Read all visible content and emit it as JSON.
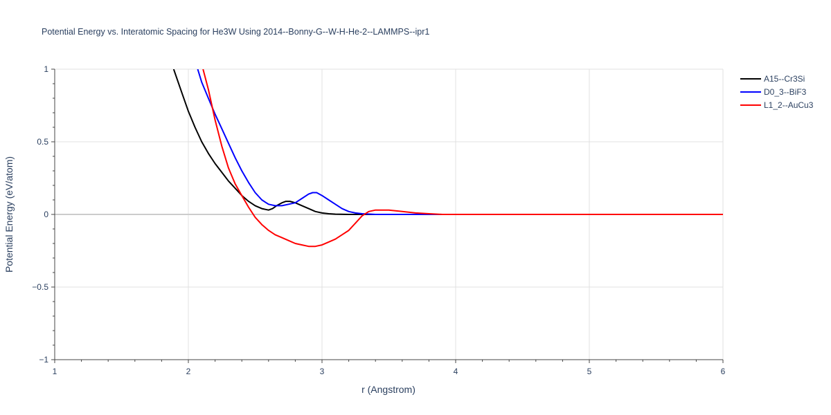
{
  "chart_data": {
    "type": "line",
    "title": "Potential Energy vs. Interatomic Spacing for He3W Using 2014--Bonny-G--W-H-He-2--LAMMPS--ipr1",
    "xlabel": "r (Angstrom)",
    "ylabel": "Potential Energy (eV/atom)",
    "xlim": [
      1,
      6
    ],
    "ylim": [
      -1,
      1
    ],
    "xticks": [
      1,
      2,
      3,
      4,
      5,
      6
    ],
    "xtick_labels": [
      "1",
      "2",
      "3",
      "4",
      "5",
      "6"
    ],
    "yticks": [
      -1,
      -0.5,
      0,
      0.5,
      1
    ],
    "ytick_labels": [
      "−1",
      "−0.5",
      "0",
      "0.5",
      "1"
    ],
    "grid": true,
    "legend_position": "top-right",
    "series": [
      {
        "name": "A15--Cr3Si",
        "color": "#000000",
        "x": [
          1.89,
          1.95,
          2.0,
          2.05,
          2.1,
          2.15,
          2.2,
          2.25,
          2.3,
          2.35,
          2.4,
          2.45,
          2.5,
          2.55,
          2.6,
          2.63,
          2.66,
          2.7,
          2.73,
          2.76,
          2.8,
          2.85,
          2.9,
          2.95,
          3.0,
          3.05,
          3.1,
          3.2,
          3.3,
          3.5,
          4.0,
          5.0,
          6.0
        ],
        "y": [
          1.0,
          0.84,
          0.71,
          0.6,
          0.5,
          0.42,
          0.35,
          0.29,
          0.23,
          0.18,
          0.13,
          0.09,
          0.06,
          0.04,
          0.03,
          0.04,
          0.06,
          0.08,
          0.09,
          0.09,
          0.08,
          0.06,
          0.04,
          0.02,
          0.01,
          0.005,
          0.002,
          0.0,
          0.0,
          0.0,
          0.0,
          0.0,
          0.0
        ]
      },
      {
        "name": "D0_3--BiF3",
        "color": "#0000ff",
        "x": [
          2.07,
          2.1,
          2.15,
          2.2,
          2.25,
          2.3,
          2.35,
          2.4,
          2.45,
          2.5,
          2.55,
          2.6,
          2.65,
          2.7,
          2.75,
          2.8,
          2.85,
          2.9,
          2.93,
          2.96,
          3.0,
          3.05,
          3.1,
          3.15,
          3.2,
          3.25,
          3.3,
          3.4,
          3.6,
          4.0,
          5.0,
          6.0
        ],
        "y": [
          1.0,
          0.91,
          0.8,
          0.69,
          0.59,
          0.49,
          0.39,
          0.3,
          0.22,
          0.15,
          0.1,
          0.07,
          0.06,
          0.06,
          0.07,
          0.08,
          0.11,
          0.14,
          0.15,
          0.15,
          0.13,
          0.1,
          0.07,
          0.04,
          0.02,
          0.01,
          0.005,
          0.0,
          0.0,
          0.0,
          0.0,
          0.0
        ]
      },
      {
        "name": "L1_2--AuCu3",
        "color": "#ff0000",
        "x": [
          2.11,
          2.15,
          2.2,
          2.25,
          2.3,
          2.35,
          2.4,
          2.45,
          2.5,
          2.55,
          2.6,
          2.65,
          2.7,
          2.75,
          2.8,
          2.85,
          2.9,
          2.95,
          3.0,
          3.05,
          3.1,
          3.15,
          3.2,
          3.25,
          3.3,
          3.35,
          3.4,
          3.45,
          3.5,
          3.6,
          3.7,
          3.8,
          3.9,
          4.0,
          5.0,
          6.0
        ],
        "y": [
          1.0,
          0.86,
          0.65,
          0.47,
          0.32,
          0.21,
          0.13,
          0.05,
          -0.02,
          -0.07,
          -0.11,
          -0.14,
          -0.16,
          -0.18,
          -0.2,
          -0.21,
          -0.22,
          -0.22,
          -0.21,
          -0.19,
          -0.17,
          -0.14,
          -0.11,
          -0.06,
          -0.01,
          0.02,
          0.03,
          0.03,
          0.03,
          0.02,
          0.01,
          0.005,
          0.0,
          0.0,
          0.0,
          0.0
        ]
      }
    ]
  }
}
